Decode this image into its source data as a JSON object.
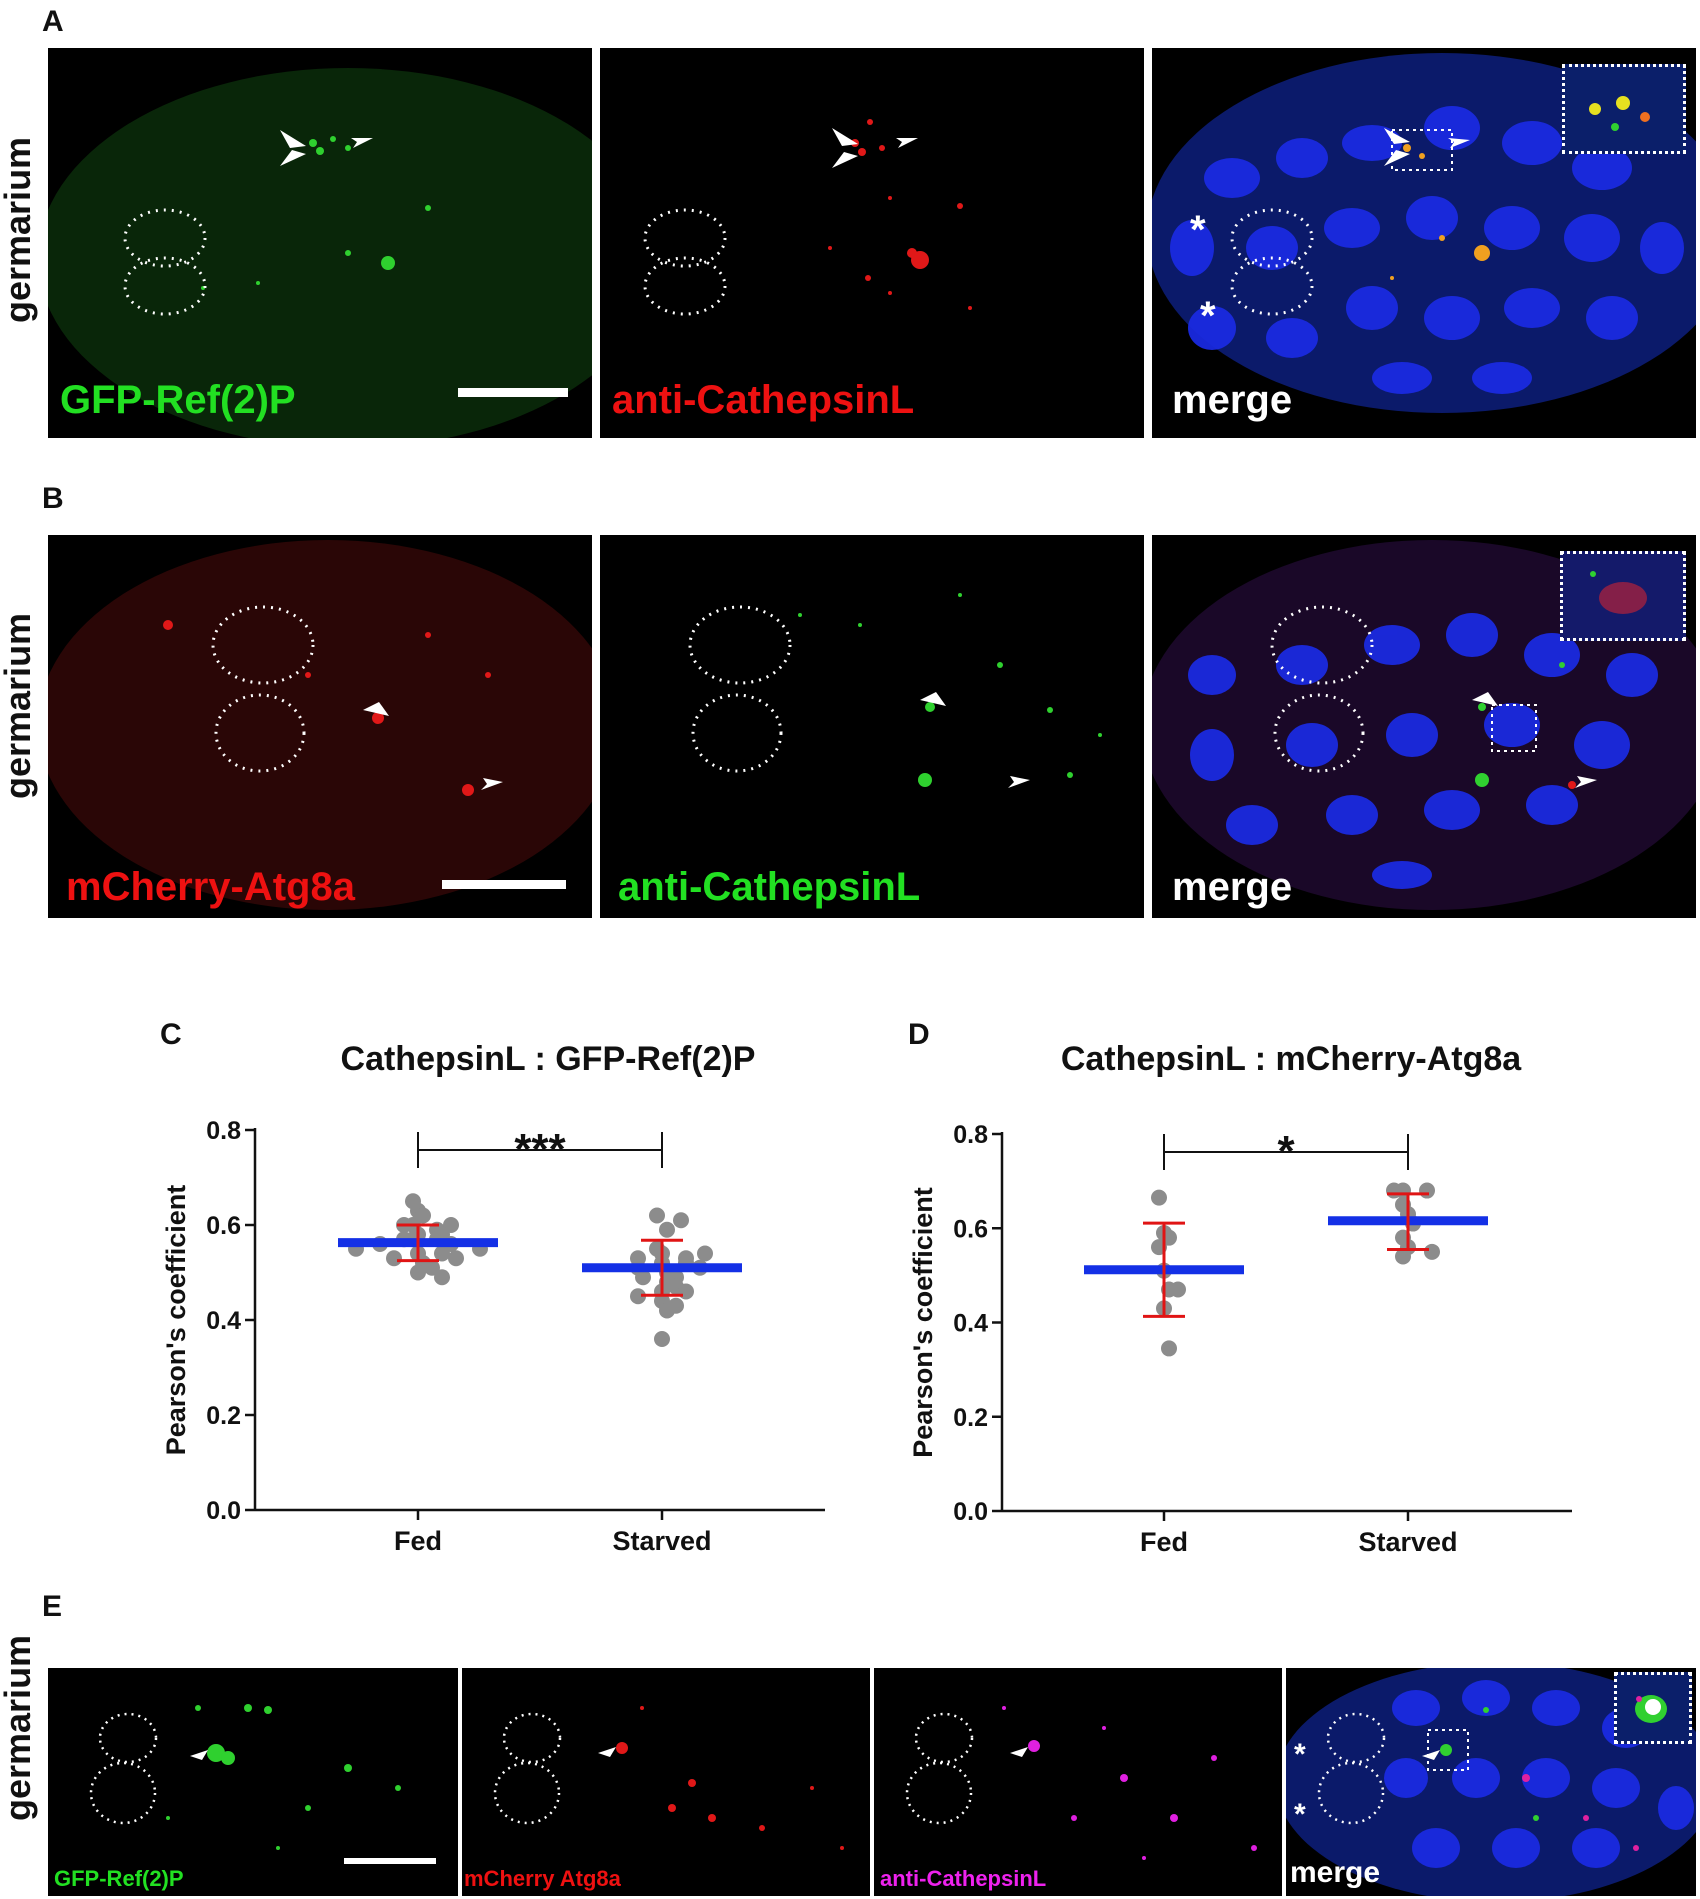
{
  "figure": {
    "panel_labels": {
      "a": "A",
      "b": "B",
      "c": "C",
      "d": "D",
      "e": "E"
    },
    "row_label": "germarium",
    "row_a": {
      "captions": [
        "GFP-Ref(2)P",
        "anti-CathepsinL",
        "merge"
      ],
      "caption_colors": [
        "#22e022",
        "#ee1111",
        "#ffffff"
      ]
    },
    "row_b": {
      "captions": [
        "mCherry-Atg8a",
        "anti-CathepsinL",
        "merge"
      ],
      "caption_colors": [
        "#ee1111",
        "#22e022",
        "#ffffff"
      ]
    },
    "row_e": {
      "captions": [
        "GFP-Ref(2)P",
        "mCherry Atg8a",
        "anti-CathepsinL",
        "merge"
      ],
      "caption_colors": [
        "#22e022",
        "#ee1111",
        "#ee22ee",
        "#ffffff"
      ]
    },
    "asterisk": "*"
  },
  "chart_data": [
    {
      "type": "scatter",
      "panel": "C",
      "title": "CathepsinL : GFP-Ref(2)P",
      "ylabel": "Pearson's coefficient",
      "xlabel": "",
      "categories": [
        "Fed",
        "Starved"
      ],
      "ylim": [
        0,
        0.8
      ],
      "yticks": [
        "0.0",
        "0.2",
        "0.4",
        "0.6",
        "0.8"
      ],
      "significance": "***",
      "series": [
        {
          "category": "Fed",
          "mean": 0.563,
          "sd_low": 0.525,
          "sd_high": 0.6,
          "points": [
            0.65,
            0.63,
            0.62,
            0.6,
            0.59,
            0.6,
            0.6,
            0.58,
            0.58,
            0.57,
            0.57,
            0.57,
            0.56,
            0.56,
            0.55,
            0.55,
            0.54,
            0.54,
            0.53,
            0.53,
            0.52,
            0.51,
            0.5,
            0.49
          ]
        },
        {
          "category": "Starved",
          "mean": 0.51,
          "sd_low": 0.452,
          "sd_high": 0.568,
          "points": [
            0.62,
            0.61,
            0.59,
            0.55,
            0.54,
            0.53,
            0.53,
            0.52,
            0.52,
            0.51,
            0.51,
            0.5,
            0.49,
            0.49,
            0.48,
            0.47,
            0.46,
            0.46,
            0.45,
            0.44,
            0.42,
            0.43,
            0.36,
            0.54
          ]
        }
      ]
    },
    {
      "type": "scatter",
      "panel": "D",
      "title": "CathepsinL : mCherry-Atg8a",
      "ylabel": "Pearson's coefficient",
      "xlabel": "",
      "categories": [
        "Fed",
        "Starved"
      ],
      "ylim": [
        0,
        0.8
      ],
      "yticks": [
        "0.0",
        "0.2",
        "0.4",
        "0.6",
        "0.8"
      ],
      "significance": "*",
      "series": [
        {
          "category": "Fed",
          "mean": 0.512,
          "sd_low": 0.413,
          "sd_high": 0.611,
          "points": [
            0.665,
            0.59,
            0.58,
            0.56,
            0.51,
            0.47,
            0.47,
            0.43,
            0.345
          ]
        },
        {
          "category": "Starved",
          "mean": 0.616,
          "sd_low": 0.555,
          "sd_high": 0.673,
          "points": [
            0.68,
            0.68,
            0.68,
            0.65,
            0.63,
            0.61,
            0.58,
            0.56,
            0.55,
            0.54
          ]
        }
      ]
    }
  ]
}
